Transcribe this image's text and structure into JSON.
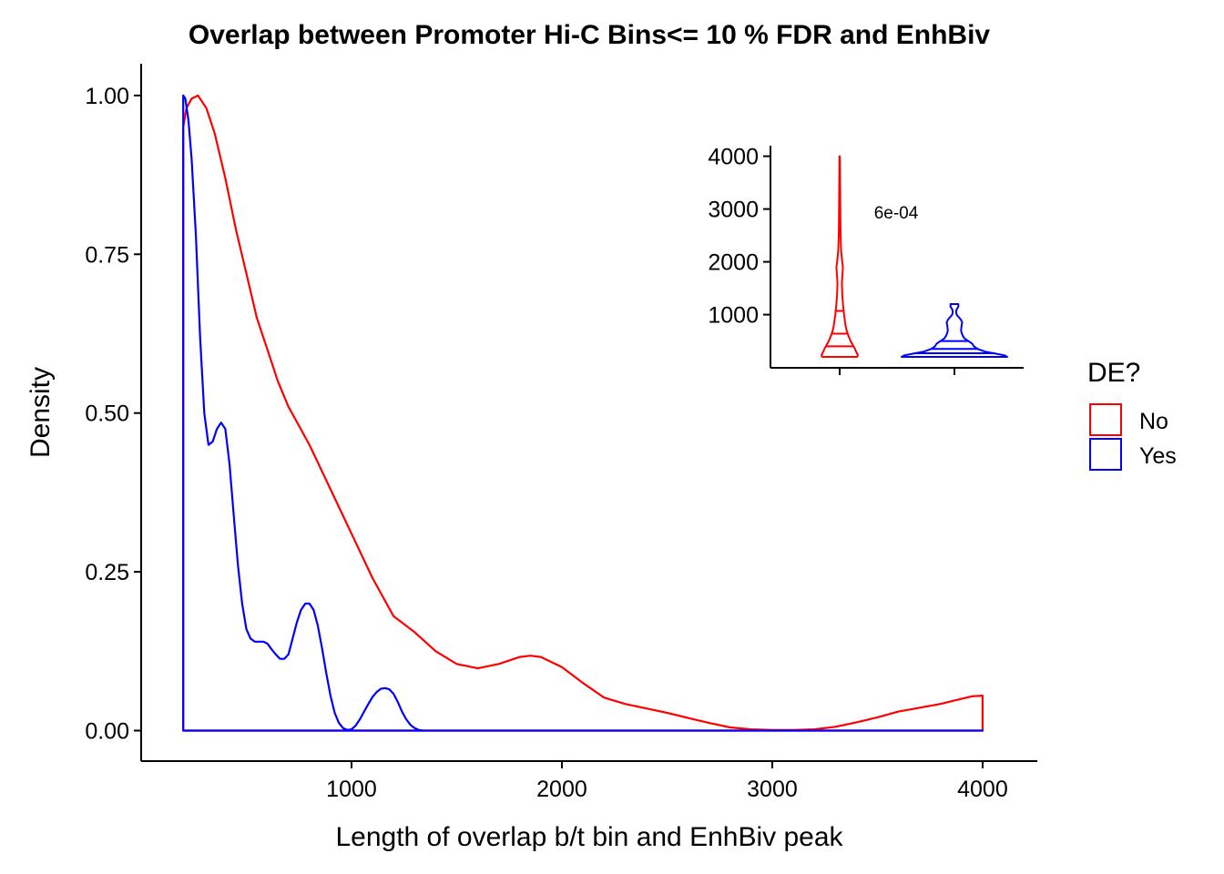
{
  "chart_data": [
    {
      "type": "area",
      "title": "Overlap between Promoter Hi-C Bins<= 10 % FDR and EnhBiv",
      "xlabel": "Length of overlap b/t bin and EnhBiv peak",
      "ylabel": "Density",
      "xlim": [
        0,
        4260
      ],
      "ylim": [
        -0.048,
        1.05
      ],
      "xticks": [
        1000,
        2000,
        3000,
        4000
      ],
      "xtick_labels": [
        "1000",
        "2000",
        "3000",
        "4000"
      ],
      "yticks": [
        0,
        0.25,
        0.5,
        0.75,
        1.0
      ],
      "ytick_labels": [
        "0.00",
        "0.25",
        "0.50",
        "0.75",
        "1.00"
      ],
      "grid": false,
      "legend": {
        "title": "DE?",
        "position": "right",
        "entries": [
          {
            "label": "No",
            "color": "#ff0000"
          },
          {
            "label": "Yes",
            "color": "#0000ff"
          }
        ]
      },
      "series": [
        {
          "name": "No",
          "color": "#ff0000",
          "x": [
            200,
            215,
            240,
            270,
            310,
            350,
            400,
            450,
            500,
            550,
            600,
            650,
            700,
            800,
            900,
            1000,
            1100,
            1200,
            1300,
            1400,
            1500,
            1600,
            1700,
            1800,
            1850,
            1900,
            2000,
            2100,
            2200,
            2300,
            2400,
            2500,
            2600,
            2700,
            2800,
            2900,
            3000,
            3100,
            3200,
            3300,
            3400,
            3500,
            3600,
            3700,
            3800,
            3900,
            3950,
            4000
          ],
          "y": [
            0.95,
            0.98,
            0.995,
            1.0,
            0.98,
            0.94,
            0.87,
            0.79,
            0.72,
            0.65,
            0.6,
            0.55,
            0.51,
            0.45,
            0.38,
            0.31,
            0.24,
            0.18,
            0.155,
            0.125,
            0.105,
            0.098,
            0.105,
            0.116,
            0.118,
            0.116,
            0.1,
            0.075,
            0.052,
            0.042,
            0.035,
            0.028,
            0.02,
            0.012,
            0.005,
            0.002,
            0.001,
            0.001,
            0.002,
            0.006,
            0.013,
            0.021,
            0.03,
            0.036,
            0.042,
            0.05,
            0.054,
            0.055
          ]
        },
        {
          "name": "Yes",
          "color": "#0000ff",
          "x": [
            200,
            210,
            225,
            240,
            260,
            280,
            300,
            320,
            340,
            360,
            380,
            400,
            420,
            440,
            460,
            480,
            500,
            520,
            540,
            560,
            580,
            600,
            620,
            640,
            660,
            680,
            700,
            720,
            740,
            760,
            780,
            800,
            820,
            840,
            860,
            880,
            900,
            920,
            940,
            960,
            980,
            1000,
            1020,
            1040,
            1060,
            1080,
            1100,
            1120,
            1140,
            1160,
            1180,
            1200,
            1220,
            1240,
            1260,
            1280,
            1300,
            1320,
            1340,
            1360,
            1380,
            1400,
            1450,
            1500
          ],
          "y": [
            1.0,
            0.995,
            0.96,
            0.9,
            0.78,
            0.62,
            0.5,
            0.45,
            0.455,
            0.475,
            0.485,
            0.475,
            0.42,
            0.34,
            0.26,
            0.2,
            0.16,
            0.145,
            0.14,
            0.14,
            0.14,
            0.137,
            0.128,
            0.12,
            0.113,
            0.113,
            0.12,
            0.145,
            0.17,
            0.19,
            0.2,
            0.2,
            0.19,
            0.165,
            0.13,
            0.09,
            0.055,
            0.028,
            0.012,
            0.004,
            0.001,
            0.002,
            0.008,
            0.018,
            0.03,
            0.042,
            0.053,
            0.061,
            0.066,
            0.067,
            0.065,
            0.058,
            0.045,
            0.03,
            0.018,
            0.009,
            0.004,
            0.001,
            0.0,
            0.0,
            0.0,
            0.0,
            0.0,
            0.0
          ]
        }
      ],
      "x_end": 4000
    },
    {
      "type": "violin",
      "ylim": [
        200,
        4200
      ],
      "yticks": [
        1000,
        2000,
        3000,
        4000
      ],
      "ytick_labels": [
        "1000",
        "2000",
        "3000",
        "4000"
      ],
      "categories": [
        "No",
        "Yes"
      ],
      "annotation": "6e-04",
      "grid": false,
      "series": [
        {
          "name": "No",
          "color": "#ff0000",
          "profile_y": [
            200,
            230,
            260,
            300,
            350,
            400,
            450,
            500,
            600,
            700,
            800,
            1000,
            1200,
            1400,
            1600,
            1800,
            1900,
            2000,
            2200,
            2500,
            2800,
            3200,
            3600,
            4000
          ],
          "profile_width": [
            0.48,
            0.5,
            0.48,
            0.45,
            0.42,
            0.38,
            0.34,
            0.3,
            0.24,
            0.19,
            0.16,
            0.12,
            0.09,
            0.07,
            0.06,
            0.08,
            0.09,
            0.07,
            0.04,
            0.025,
            0.02,
            0.014,
            0.01,
            0.006
          ],
          "quantiles": [
            400,
            640,
            1070
          ]
        },
        {
          "name": "Yes",
          "color": "#0000ff",
          "profile_y": [
            200,
            230,
            260,
            300,
            350,
            400,
            450,
            500,
            550,
            600,
            650,
            700,
            800,
            850,
            900,
            950,
            1000,
            1050,
            1100,
            1150,
            1200
          ],
          "profile_width": [
            0.95,
            0.9,
            0.75,
            0.55,
            0.42,
            0.35,
            0.32,
            0.25,
            0.18,
            0.15,
            0.13,
            0.12,
            0.13,
            0.14,
            0.12,
            0.08,
            0.04,
            0.03,
            0.04,
            0.07,
            0.07
          ],
          "quantiles": [
            270,
            350,
            500
          ]
        }
      ]
    }
  ]
}
